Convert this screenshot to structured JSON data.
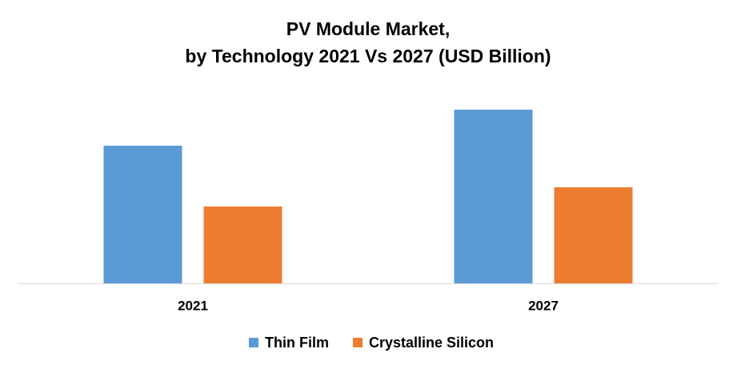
{
  "chart_data": {
    "type": "bar",
    "title": [
      "PV Module Market,",
      "by Technology 2021 Vs 2027 (USD Billion)"
    ],
    "categories": [
      "2021",
      "2027"
    ],
    "series": [
      {
        "name": "Thin Film",
        "color": "#5b9bd5",
        "values": [
          172,
          217
        ]
      },
      {
        "name": "Crystalline Silicon",
        "color": "#ed7d31",
        "values": [
          96,
          120
        ]
      }
    ],
    "ylim": [
      0,
      244
    ],
    "legend": "bottom"
  }
}
